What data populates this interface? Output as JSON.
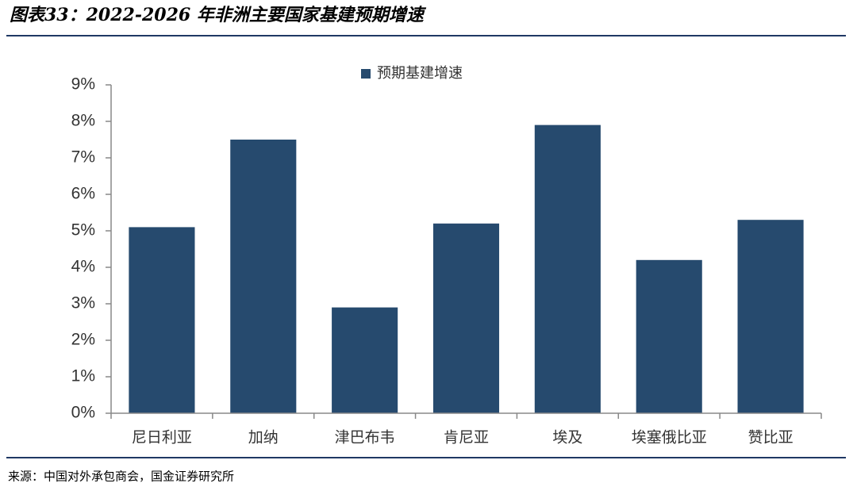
{
  "chart_data": {
    "type": "bar",
    "title": "图表33：2022-2026 年非洲主要国家基建预期增速",
    "source": "来源：中国对外承包商会，国金证券研究所",
    "categories": [
      "尼日利亚",
      "加纳",
      "津巴布韦",
      "肯尼亚",
      "埃及",
      "埃塞俄比亚",
      "赞比亚"
    ],
    "series": [
      {
        "name": "预期基建增速",
        "color": "#264a6e",
        "values": [
          5.1,
          7.5,
          2.9,
          5.2,
          7.9,
          4.2,
          5.3
        ]
      }
    ],
    "ylim": [
      0,
      9
    ],
    "yticks": [
      {
        "value": 0,
        "label": "0%"
      },
      {
        "value": 1,
        "label": "1%"
      },
      {
        "value": 2,
        "label": "2%"
      },
      {
        "value": 3,
        "label": "3%"
      },
      {
        "value": 4,
        "label": "4%"
      },
      {
        "value": 5,
        "label": "5%"
      },
      {
        "value": 6,
        "label": "6%"
      },
      {
        "value": 7,
        "label": "7%"
      },
      {
        "value": 8,
        "label": "8%"
      },
      {
        "value": 9,
        "label": "9%"
      }
    ],
    "grid": false,
    "legend": "top"
  }
}
